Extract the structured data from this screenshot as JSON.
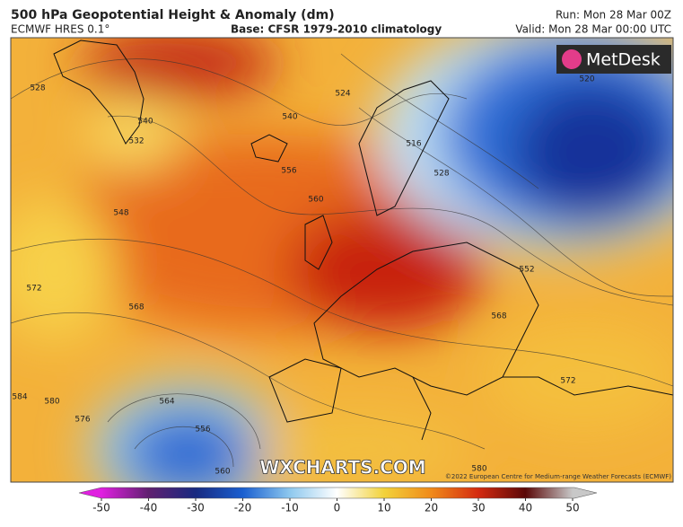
{
  "header": {
    "title": "500 hPa Geopotential Height & Anomaly (dm)",
    "model": "ECMWF HRES 0.1°",
    "base": "Base: CFSR 1979-2010 climatology",
    "run": "Run: Mon 28 Mar 00Z",
    "valid": "Valid: Mon 28 Mar 00:00 UTC"
  },
  "logo": "MetDesk",
  "watermark": "WXCHARTS.COM",
  "credit": "©2022 European Centre for Medium-range Weather Forecasts (ECMWF)",
  "contour_labels": [
    540,
    532,
    548,
    572,
    568,
    584,
    580,
    576,
    564,
    556,
    560,
    524,
    516,
    528,
    556,
    560,
    552,
    568,
    572,
    540,
    520,
    580,
    528
  ],
  "colorbar": {
    "ticks": [
      -50,
      -40,
      -30,
      -20,
      -10,
      0,
      10,
      20,
      30,
      40,
      50
    ],
    "colors": [
      "#e020e0",
      "#602070",
      "#182a80",
      "#1a5fd0",
      "#8ec8ee",
      "#ffffff",
      "#f2d23a",
      "#f08a1a",
      "#d42a10",
      "#5a0808",
      "#c8c8c8"
    ]
  }
}
